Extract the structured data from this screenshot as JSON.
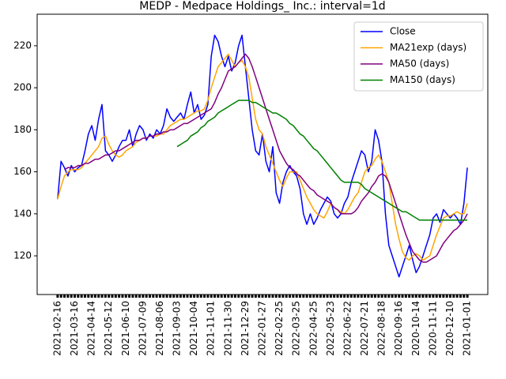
{
  "chart_data": {
    "type": "line",
    "title": "MEDP - Medpace Holdings_ Inc.: interval=1d",
    "categories": [
      "2021-02-16",
      null,
      null,
      null,
      null,
      "2021-03-16",
      null,
      null,
      null,
      null,
      "2021-04-14",
      null,
      null,
      null,
      null,
      "2021-05-12",
      null,
      null,
      null,
      null,
      "2021-06-10",
      null,
      null,
      null,
      null,
      "2021-07-09",
      null,
      null,
      null,
      null,
      "2021-08-06",
      null,
      null,
      null,
      null,
      "2021-09-03",
      null,
      null,
      null,
      null,
      "2021-10-04",
      null,
      null,
      null,
      null,
      "2021-11-01",
      null,
      null,
      null,
      null,
      "2021-11-30",
      null,
      null,
      null,
      null,
      "2021-12-29",
      null,
      null,
      null,
      null,
      "2022-01-27",
      null,
      null,
      null,
      null,
      "2022-02-25",
      null,
      null,
      null,
      null,
      "2022-03-25",
      null,
      null,
      null,
      null,
      "2022-04-25",
      null,
      null,
      null,
      null,
      "2022-05-23",
      null,
      null,
      null,
      null,
      "2022-06-22",
      null,
      null,
      null,
      null,
      "2022-07-21",
      null,
      null,
      null,
      null,
      "2022-08-18",
      null,
      null,
      null,
      null,
      "2020-09-16",
      null,
      null,
      null,
      null,
      "2020-10-14",
      null,
      null,
      null,
      null,
      "2020-11-11",
      null,
      null,
      null,
      null,
      "2020-12-10",
      null,
      null,
      null,
      null,
      "2021-01-01"
    ],
    "series": [
      {
        "name": "Close",
        "color": "#0000ff",
        "values": [
          147,
          165,
          162,
          158,
          163,
          160,
          162,
          163,
          170,
          178,
          182,
          175,
          185,
          192,
          170,
          168,
          165,
          168,
          172,
          175,
          175,
          180,
          172,
          178,
          182,
          180,
          175,
          178,
          176,
          180,
          178,
          182,
          190,
          186,
          184,
          186,
          188,
          185,
          192,
          198,
          188,
          192,
          185,
          187,
          192,
          215,
          225,
          222,
          215,
          210,
          215,
          208,
          212,
          220,
          225,
          210,
          195,
          180,
          170,
          168,
          178,
          165,
          160,
          172,
          150,
          145,
          155,
          160,
          163,
          160,
          158,
          152,
          140,
          135,
          140,
          135,
          138,
          142,
          145,
          148,
          146,
          140,
          138,
          140,
          145,
          148,
          155,
          160,
          165,
          170,
          168,
          160,
          165,
          180,
          175,
          165,
          140,
          125,
          120,
          115,
          110,
          115,
          120,
          125,
          118,
          112,
          115,
          120,
          125,
          130,
          138,
          140,
          136,
          142,
          140,
          138,
          140,
          138,
          135,
          145,
          162
        ]
      },
      {
        "name": "MA21exp (days)",
        "color": "#ffa500",
        "values": [
          147,
          153,
          158,
          160,
          161,
          161,
          161,
          162,
          164,
          166,
          168,
          170,
          172,
          176,
          177,
          173,
          170,
          168,
          167,
          168,
          170,
          171,
          172,
          174,
          175,
          176,
          176,
          177,
          177,
          177,
          178,
          178,
          180,
          182,
          183,
          184,
          185,
          185,
          186,
          187,
          188,
          189,
          189,
          190,
          194,
          200,
          205,
          210,
          212,
          214,
          216,
          213,
          210,
          212,
          213,
          210,
          205,
          195,
          185,
          180,
          178,
          172,
          168,
          164,
          160,
          156,
          153,
          157,
          160,
          160,
          160,
          156,
          152,
          148,
          145,
          142,
          140,
          139,
          138,
          141,
          145,
          143,
          142,
          141,
          140,
          142,
          145,
          148,
          150,
          155,
          160,
          162,
          163,
          166,
          168,
          165,
          160,
          155,
          145,
          135,
          128,
          122,
          119,
          118,
          120,
          121,
          120,
          118,
          119,
          120,
          125,
          130,
          134,
          138,
          139,
          139,
          140,
          141,
          140,
          140,
          145
        ]
      },
      {
        "name": "MA50 (days)",
        "color": "#800080",
        "values": [
          null,
          null,
          161,
          162,
          162,
          162,
          163,
          163,
          164,
          164,
          165,
          166,
          166,
          167,
          168,
          168,
          169,
          170,
          170,
          171,
          172,
          173,
          174,
          175,
          175,
          176,
          176,
          177,
          177,
          178,
          178,
          179,
          179,
          180,
          180,
          181,
          182,
          183,
          183,
          184,
          185,
          186,
          187,
          188,
          189,
          190,
          193,
          197,
          200,
          204,
          208,
          209,
          210,
          212,
          214,
          216,
          214,
          210,
          205,
          200,
          195,
          190,
          185,
          180,
          175,
          170,
          167,
          164,
          162,
          161,
          159,
          158,
          156,
          154,
          152,
          151,
          149,
          148,
          147,
          146,
          145,
          143,
          142,
          140,
          140,
          140,
          140,
          141,
          143,
          146,
          148,
          150,
          153,
          155,
          158,
          159,
          158,
          155,
          150,
          145,
          140,
          135,
          130,
          126,
          122,
          120,
          118,
          117,
          117,
          118,
          119,
          120,
          123,
          126,
          128,
          130,
          132,
          133,
          135,
          137,
          140
        ]
      },
      {
        "name": "MA150 (days)",
        "color": "#008000",
        "values": [
          null,
          null,
          null,
          null,
          null,
          null,
          null,
          null,
          null,
          null,
          null,
          null,
          null,
          null,
          null,
          null,
          null,
          null,
          null,
          null,
          null,
          null,
          null,
          null,
          null,
          null,
          null,
          null,
          null,
          null,
          null,
          null,
          null,
          null,
          null,
          172,
          173,
          174,
          175,
          177,
          178,
          179,
          181,
          182,
          184,
          185,
          186,
          188,
          189,
          190,
          191,
          192,
          193,
          194,
          194,
          194,
          194,
          193,
          193,
          192,
          191,
          190,
          189,
          188,
          188,
          187,
          186,
          185,
          183,
          182,
          180,
          178,
          177,
          175,
          173,
          171,
          170,
          168,
          166,
          164,
          162,
          160,
          158,
          156,
          155,
          155,
          155,
          155,
          155,
          154,
          152,
          151,
          150,
          149,
          148,
          147,
          146,
          145,
          144,
          143,
          142,
          141,
          141,
          140,
          139,
          138,
          137,
          137,
          137,
          137,
          137,
          137,
          137,
          137,
          137,
          137,
          137,
          137,
          137,
          137,
          137
        ]
      }
    ],
    "ylim": [
      101.6,
      235
    ],
    "yticks": [
      120,
      140,
      160,
      180,
      200,
      220
    ],
    "legend": "upper right"
  }
}
